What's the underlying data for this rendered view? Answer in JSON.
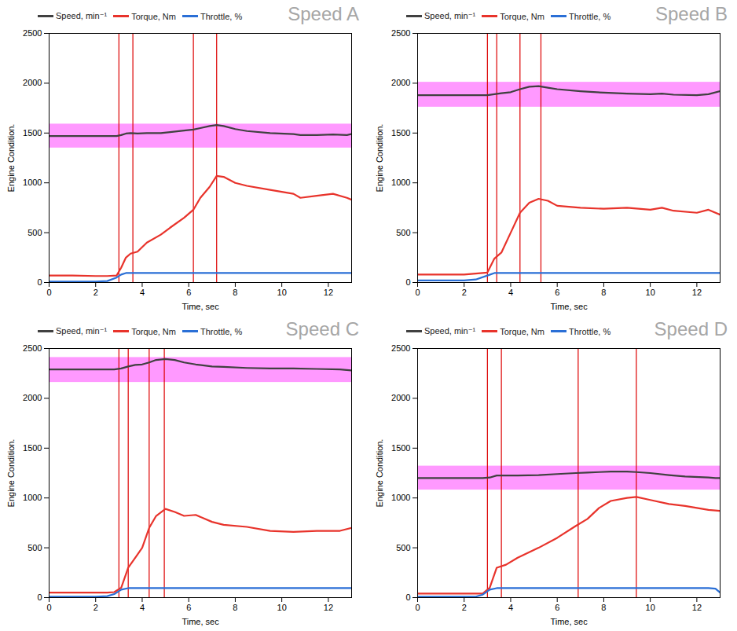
{
  "chart_data": [
    {
      "type": "line",
      "title": "Speed A",
      "x_label": "Time, sec",
      "y_label": "Engine Condition.",
      "xlim": [
        0,
        13
      ],
      "xticks": [
        0,
        2,
        4,
        6,
        8,
        10,
        12
      ],
      "ylim": [
        0,
        2500
      ],
      "yticks": [
        0,
        500,
        1000,
        1500,
        2000,
        2500
      ],
      "legend": "top",
      "speed_band": [
        1350,
        1590
      ],
      "vertical_lines": [
        3.0,
        3.6,
        6.2,
        7.2
      ],
      "x": [
        0,
        1,
        2,
        2.5,
        2.9,
        3.1,
        3.3,
        3.5,
        3.8,
        4.2,
        4.8,
        5.2,
        5.8,
        6.2,
        6.5,
        6.9,
        7.2,
        7.5,
        8,
        8.5,
        9.5,
        10.5,
        10.8,
        11.5,
        12.2,
        12.8,
        13
      ],
      "series": [
        {
          "name": "Speed, min⁻¹",
          "color": "#404040",
          "values": [
            1470,
            1470,
            1470,
            1470,
            1470,
            1480,
            1495,
            1500,
            1495,
            1500,
            1500,
            1510,
            1525,
            1535,
            1550,
            1570,
            1580,
            1570,
            1540,
            1520,
            1500,
            1490,
            1480,
            1480,
            1485,
            1480,
            1490
          ]
        },
        {
          "name": "Torque, Nm",
          "color": "#e8332b",
          "values": [
            70,
            70,
            65,
            65,
            70,
            150,
            250,
            290,
            310,
            400,
            480,
            550,
            650,
            730,
            850,
            960,
            1070,
            1060,
            1000,
            970,
            930,
            890,
            850,
            870,
            890,
            850,
            830
          ]
        },
        {
          "name": "Throttle, %",
          "color": "#2a6fd6",
          "values": [
            10,
            10,
            10,
            15,
            50,
            80,
            95,
            95,
            95,
            95,
            95,
            95,
            95,
            95,
            95,
            95,
            95,
            95,
            95,
            95,
            95,
            95,
            95,
            95,
            95,
            95,
            95
          ]
        }
      ]
    },
    {
      "type": "line",
      "title": "Speed B",
      "x_label": "Time, sec",
      "y_label": "Engine Condition.",
      "xlim": [
        0,
        13
      ],
      "xticks": [
        0,
        2,
        4,
        6,
        8,
        10,
        12
      ],
      "ylim": [
        0,
        2500
      ],
      "yticks": [
        0,
        500,
        1000,
        1500,
        2000,
        2500
      ],
      "legend": "top",
      "speed_band": [
        1760,
        2010
      ],
      "vertical_lines": [
        3.0,
        3.4,
        4.4,
        5.3
      ],
      "x": [
        0,
        1,
        2,
        2.5,
        3,
        3.3,
        3.6,
        4,
        4.4,
        4.8,
        5.2,
        5.6,
        6,
        7,
        8,
        9,
        10,
        10.5,
        11,
        12,
        12.5,
        13
      ],
      "series": [
        {
          "name": "Speed, min⁻¹",
          "color": "#404040",
          "values": [
            1880,
            1880,
            1880,
            1880,
            1880,
            1890,
            1900,
            1910,
            1940,
            1965,
            1970,
            1955,
            1940,
            1920,
            1905,
            1895,
            1890,
            1895,
            1885,
            1880,
            1890,
            1920
          ]
        },
        {
          "name": "Torque, Nm",
          "color": "#e8332b",
          "values": [
            80,
            80,
            80,
            90,
            100,
            240,
            300,
            500,
            700,
            800,
            840,
            820,
            770,
            750,
            740,
            750,
            730,
            750,
            720,
            700,
            730,
            680
          ]
        },
        {
          "name": "Throttle, %",
          "color": "#2a6fd6",
          "values": [
            20,
            20,
            20,
            30,
            70,
            95,
            95,
            95,
            95,
            95,
            95,
            95,
            95,
            95,
            95,
            95,
            95,
            95,
            95,
            95,
            95,
            95
          ]
        }
      ]
    },
    {
      "type": "line",
      "title": "Speed C",
      "x_label": "Time, sec",
      "y_label": "Engine Condition.",
      "xlim": [
        0,
        13
      ],
      "xticks": [
        0,
        2,
        4,
        6,
        8,
        10,
        12
      ],
      "ylim": [
        0,
        2500
      ],
      "yticks": [
        0,
        500,
        1000,
        1500,
        2000,
        2500
      ],
      "legend": "top",
      "speed_band": [
        2160,
        2410
      ],
      "vertical_lines": [
        3.0,
        3.4,
        4.3,
        4.95
      ],
      "x": [
        0,
        1,
        2,
        2.5,
        2.8,
        3.1,
        3.4,
        3.7,
        4,
        4.3,
        4.6,
        5,
        5.4,
        5.8,
        6.3,
        7,
        7.5,
        8.5,
        9.5,
        10.5,
        11.5,
        12.5,
        13
      ],
      "series": [
        {
          "name": "Speed, min⁻¹",
          "color": "#404040",
          "values": [
            2290,
            2290,
            2290,
            2290,
            2290,
            2300,
            2320,
            2335,
            2340,
            2360,
            2385,
            2395,
            2385,
            2360,
            2340,
            2320,
            2315,
            2305,
            2300,
            2300,
            2295,
            2290,
            2280
          ]
        },
        {
          "name": "Torque, Nm",
          "color": "#e8332b",
          "values": [
            50,
            50,
            50,
            50,
            55,
            100,
            300,
            400,
            500,
            700,
            820,
            890,
            860,
            820,
            830,
            760,
            730,
            710,
            670,
            660,
            670,
            670,
            700
          ]
        },
        {
          "name": "Throttle, %",
          "color": "#2a6fd6",
          "values": [
            10,
            10,
            10,
            15,
            35,
            80,
            95,
            95,
            95,
            95,
            95,
            95,
            95,
            95,
            95,
            95,
            95,
            95,
            95,
            95,
            95,
            95,
            95
          ]
        }
      ]
    },
    {
      "type": "line",
      "title": "Speed D",
      "x_label": "Time, sec",
      "y_label": "Engine Condition.",
      "xlim": [
        0,
        13
      ],
      "xticks": [
        0,
        2,
        4,
        6,
        8,
        10,
        12
      ],
      "ylim": [
        0,
        2500
      ],
      "yticks": [
        0,
        500,
        1000,
        1500,
        2000,
        2500
      ],
      "legend": "top",
      "speed_band": [
        1080,
        1320
      ],
      "vertical_lines": [
        3.0,
        3.6,
        6.9,
        9.4
      ],
      "x": [
        0,
        1,
        2,
        2.5,
        2.8,
        3.1,
        3.4,
        3.8,
        4.3,
        5.2,
        6,
        6.8,
        7.3,
        7.8,
        8.3,
        9,
        9.4,
        10,
        10.8,
        11.5,
        12.5,
        12.8,
        13
      ],
      "series": [
        {
          "name": "Speed, min⁻¹",
          "color": "#404040",
          "values": [
            1200,
            1200,
            1200,
            1200,
            1200,
            1205,
            1225,
            1225,
            1225,
            1230,
            1240,
            1250,
            1255,
            1260,
            1265,
            1265,
            1260,
            1250,
            1230,
            1215,
            1205,
            1200,
            1200
          ]
        },
        {
          "name": "Torque, Nm",
          "color": "#e8332b",
          "values": [
            40,
            40,
            40,
            40,
            40,
            100,
            300,
            330,
            400,
            500,
            600,
            720,
            790,
            900,
            970,
            1000,
            1010,
            980,
            940,
            920,
            880,
            875,
            870
          ]
        },
        {
          "name": "Throttle, %",
          "color": "#2a6fd6",
          "values": [
            10,
            10,
            10,
            10,
            30,
            80,
            95,
            95,
            95,
            95,
            95,
            95,
            95,
            95,
            95,
            95,
            95,
            95,
            95,
            95,
            95,
            90,
            50
          ]
        }
      ]
    }
  ]
}
